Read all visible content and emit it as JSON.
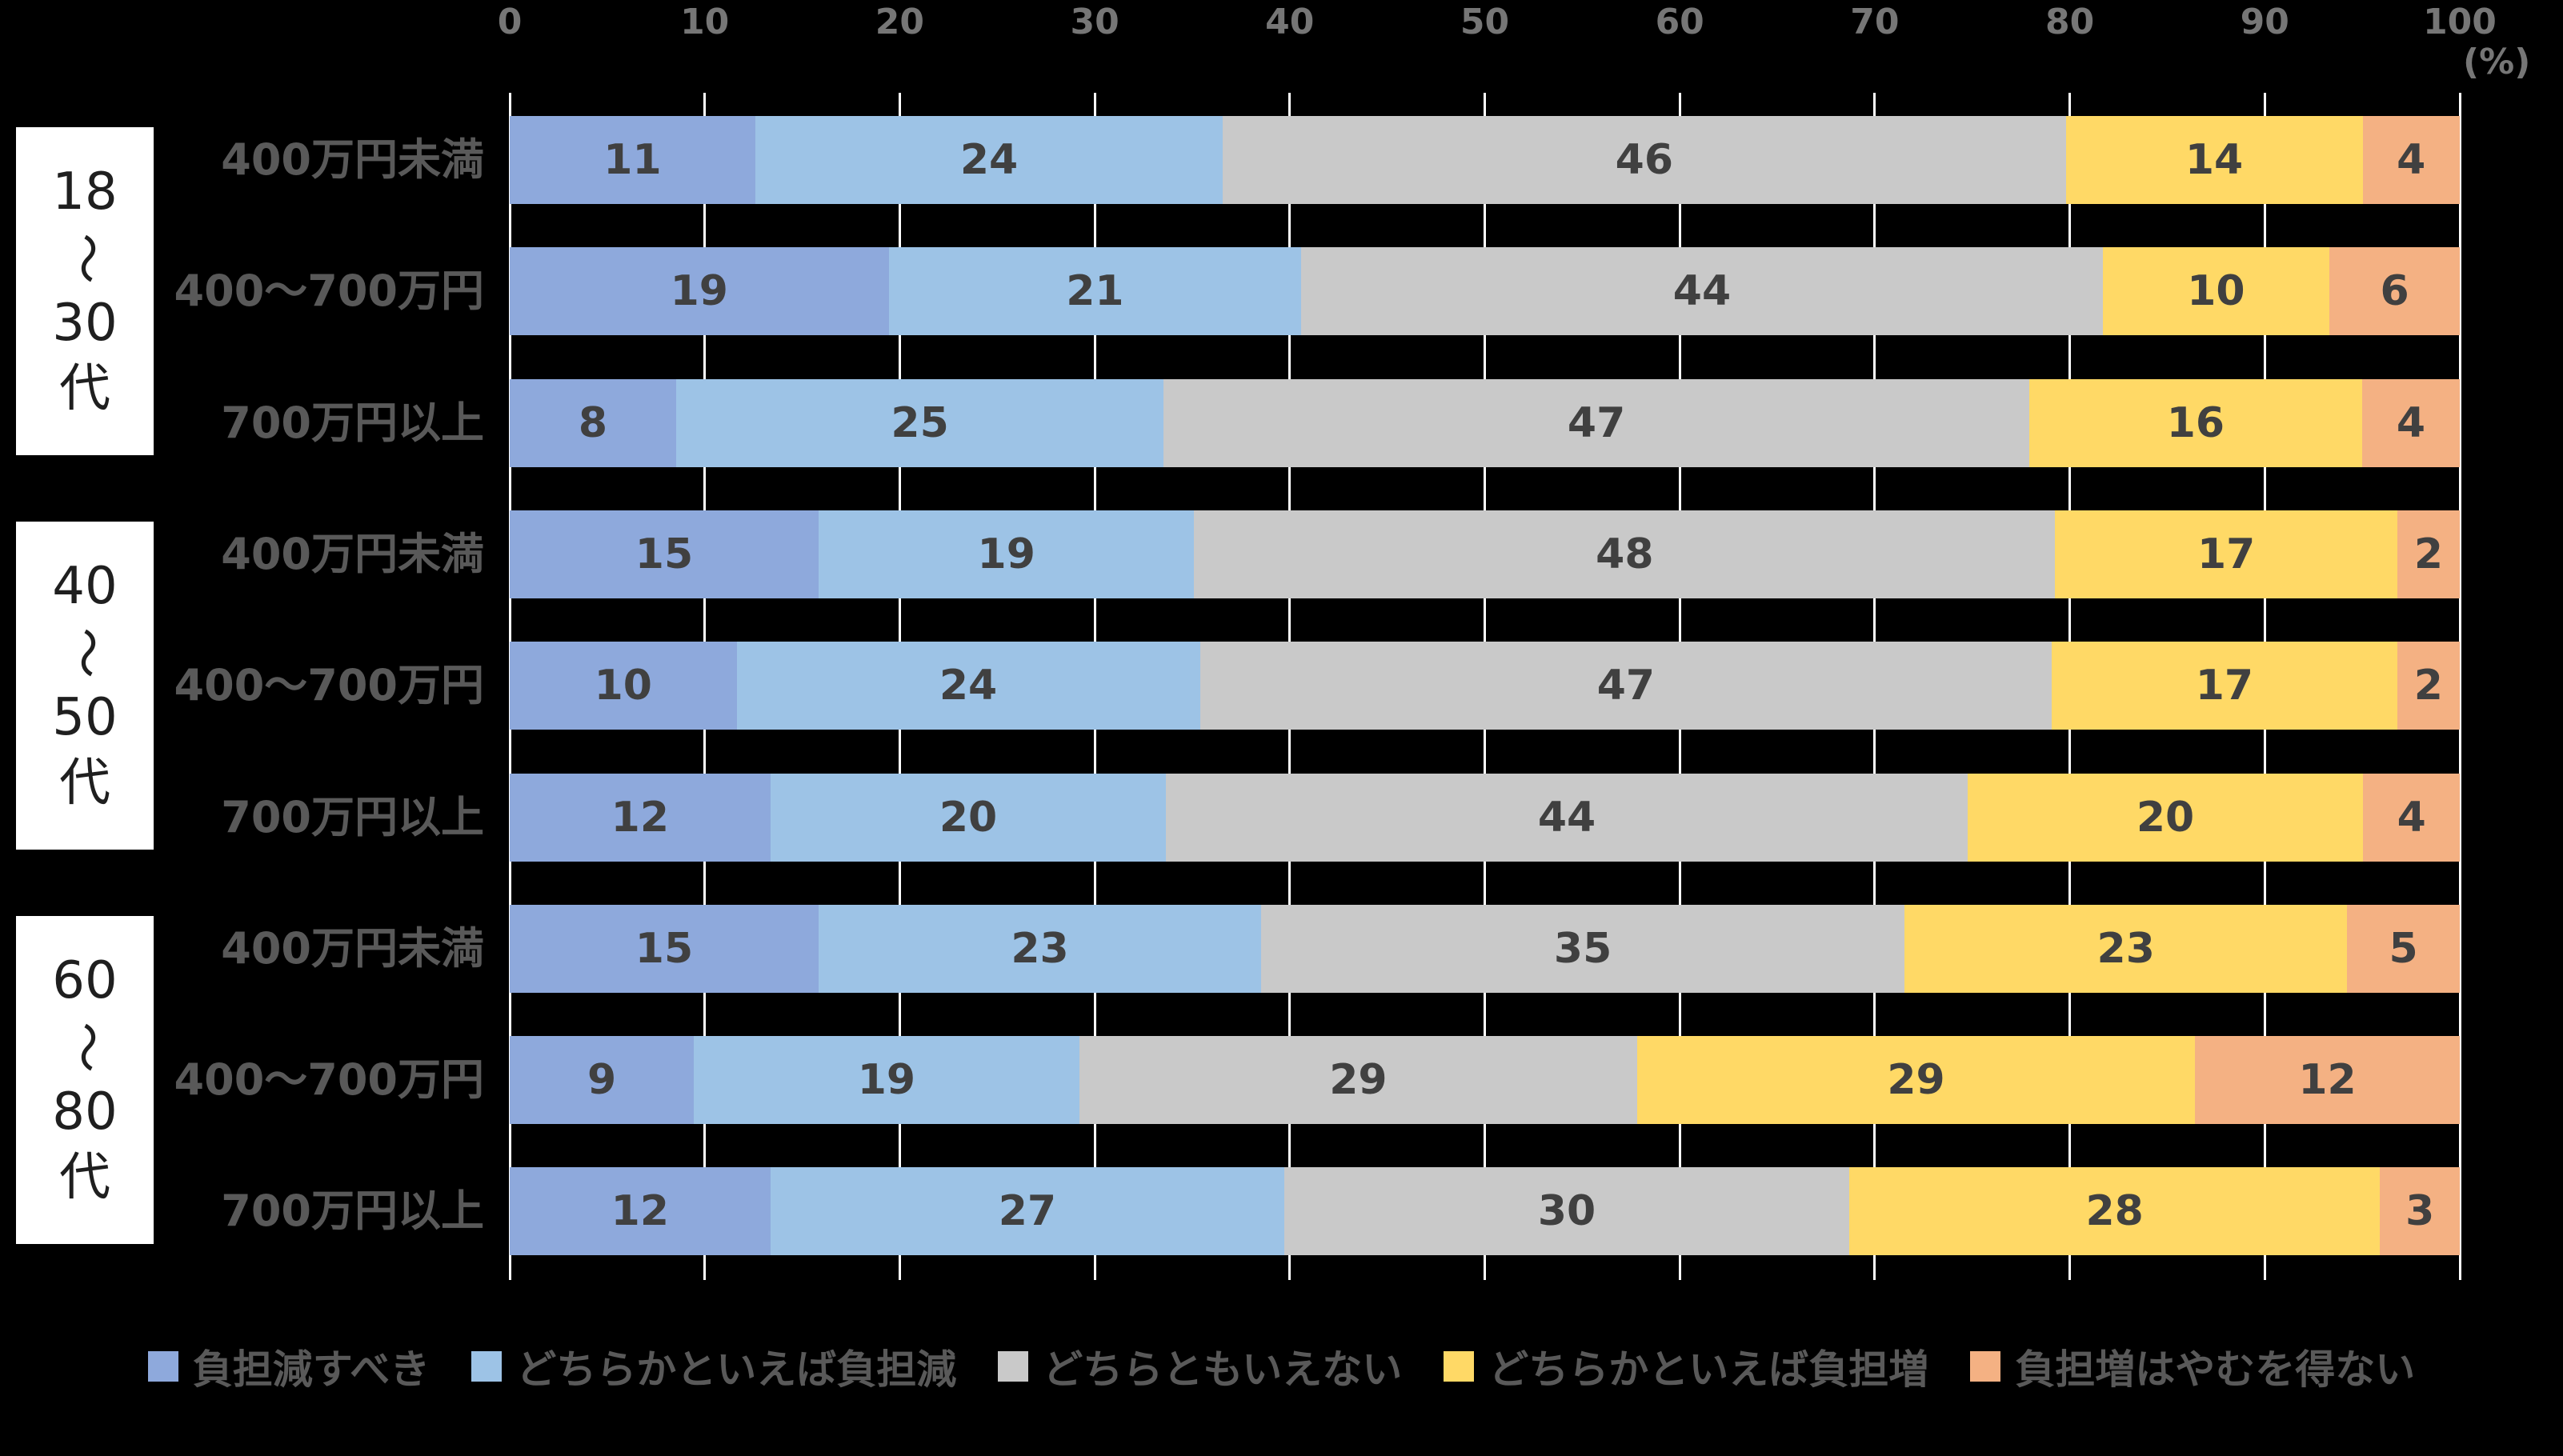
{
  "chart_data": {
    "type": "bar",
    "variant": "100-percent-stacked-horizontal",
    "title": "",
    "unit_label": "(%)",
    "x_axis": {
      "min": 0,
      "max": 100,
      "tick_step": 10,
      "tick_labels": [
        "0",
        "10",
        "20",
        "30",
        "40",
        "50",
        "60",
        "70",
        "80",
        "90",
        "100"
      ]
    },
    "grid": true,
    "legend_position": "bottom",
    "series": [
      {
        "name": "負担減すべき",
        "color": "#8EA9DC"
      },
      {
        "name": "どちらかといえば負担減",
        "color": "#9DC3E6"
      },
      {
        "name": "どちらともいえない",
        "color": "#C9C9C9"
      },
      {
        "name": "どちらかといえば負担増",
        "color": "#FFD966"
      },
      {
        "name": "負担増はやむを得ない",
        "color": "#F4B183"
      }
    ],
    "groups": [
      {
        "label": "18～30代",
        "label_lines": [
          "18",
          "～",
          "30",
          "代"
        ],
        "rows": [
          {
            "category": "400万円未満",
            "values": [
              11,
              24,
              46,
              14,
              4
            ]
          },
          {
            "category": "400～700万円",
            "values": [
              19,
              21,
              44,
              10,
              6
            ]
          },
          {
            "category": "700万円以上",
            "values": [
              8,
              25,
              47,
              16,
              4
            ]
          }
        ]
      },
      {
        "label": "40～50代",
        "label_lines": [
          "40",
          "～",
          "50",
          "代"
        ],
        "rows": [
          {
            "category": "400万円未満",
            "values": [
              15,
              19,
              48,
              17,
              2
            ]
          },
          {
            "category": "400～700万円",
            "values": [
              10,
              24,
              47,
              17,
              2
            ]
          },
          {
            "category": "700万円以上",
            "values": [
              12,
              20,
              44,
              20,
              4
            ]
          }
        ]
      },
      {
        "label": "60～80代",
        "label_lines": [
          "60",
          "～",
          "80",
          "代"
        ],
        "rows": [
          {
            "category": "400万円未満",
            "values": [
              15,
              23,
              35,
              23,
              5
            ]
          },
          {
            "category": "400～700万円",
            "values": [
              9,
              19,
              29,
              29,
              12
            ]
          },
          {
            "category": "700万円以上",
            "values": [
              12,
              27,
              30,
              28,
              3
            ]
          }
        ]
      }
    ],
    "style": {
      "background": "#000000",
      "gridline_color": "#FFFFFF",
      "axis_label_color": "#767676",
      "value_label_color": "#404040",
      "category_label_color": "#595959",
      "legend_label_color": "#595959",
      "group_box_bg": "#FFFFFF",
      "group_box_text": "#1F1F1F"
    }
  }
}
